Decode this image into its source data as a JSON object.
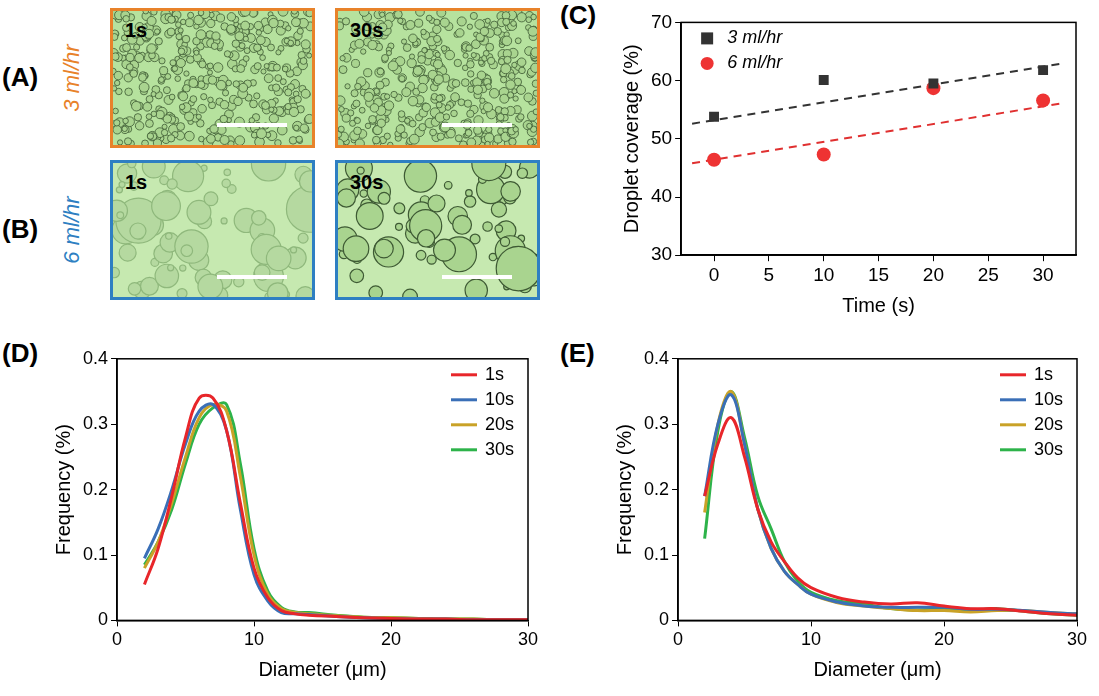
{
  "image_panels": [
    {
      "panel": "(A)",
      "label": "3 ml/hr",
      "color": "#e8822a",
      "frames": [
        "1s",
        "30s"
      ]
    },
    {
      "panel": "(B)",
      "label": "6 ml/hr",
      "color": "#2e7fc2",
      "frames": [
        "1s",
        "30s"
      ]
    }
  ],
  "chart_data": [
    {
      "panel": "(C)",
      "type": "scatter",
      "x_label": "Time (s)",
      "y_label": "Droplet coverage (%)",
      "xlim": [
        -3,
        33
      ],
      "xticks": [
        0,
        5,
        10,
        15,
        20,
        25,
        30
      ],
      "ylim": [
        30,
        70
      ],
      "yticks": [
        30,
        40,
        50,
        60,
        70
      ],
      "grid": false,
      "legend": "upper left",
      "series": [
        {
          "name": "3 ml/hr",
          "color": "#333333",
          "marker": "square",
          "x": [
            0,
            10,
            20,
            30
          ],
          "values": [
            53.8,
            60.1,
            59.5,
            61.8
          ]
        },
        {
          "name": "6 ml/hr",
          "color": "#ee3333",
          "marker": "circle",
          "x": [
            0,
            10,
            20,
            30
          ],
          "values": [
            46.4,
            47.3,
            58.7,
            56.6
          ]
        },
        {
          "type": "line",
          "line_style": "dashed",
          "color": "#333333",
          "x": [
            -2,
            32
          ],
          "values": [
            52.6,
            63.0
          ]
        },
        {
          "type": "line",
          "line_style": "dashed",
          "color": "#e03030",
          "x": [
            -2,
            32
          ],
          "values": [
            45.8,
            56.2
          ]
        }
      ]
    },
    {
      "panel": "(D)",
      "type": "line",
      "x_label": "Diameter (μm)",
      "y_label": "Frequency (%)",
      "xlim": [
        0,
        30
      ],
      "xticks": [
        0,
        10,
        20,
        30
      ],
      "ylim": [
        0,
        0.4
      ],
      "yticks": [
        0,
        0.1,
        0.2,
        0.3,
        0.4
      ],
      "grid": false,
      "legend": "upper right",
      "series": [
        {
          "name": "1s",
          "color": "#e8262a",
          "x": [
            2,
            3,
            4,
            5,
            6,
            7,
            8,
            9,
            10,
            11,
            12,
            13,
            14,
            16,
            18,
            20,
            22,
            24,
            26,
            28,
            30
          ],
          "values": [
            0.055,
            0.11,
            0.19,
            0.28,
            0.34,
            0.34,
            0.29,
            0.18,
            0.08,
            0.035,
            0.015,
            0.01,
            0.008,
            0.006,
            0.004,
            0.003,
            0.002,
            0.002,
            0.001,
            0.001,
            0.001
          ]
        },
        {
          "name": "10s",
          "color": "#3a6fb7",
          "x": [
            2,
            3,
            4,
            5,
            6,
            7,
            8,
            9,
            10,
            11,
            12,
            13,
            14,
            16,
            18,
            20,
            22,
            24,
            26,
            28,
            30
          ],
          "values": [
            0.095,
            0.14,
            0.2,
            0.27,
            0.32,
            0.33,
            0.29,
            0.17,
            0.07,
            0.03,
            0.012,
            0.01,
            0.009,
            0.006,
            0.004,
            0.003,
            0.002,
            0.002,
            0.001,
            0.001,
            0.001
          ]
        },
        {
          "name": "20s",
          "color": "#c9a227",
          "x": [
            2,
            3,
            4,
            5,
            6,
            7,
            8,
            9,
            10,
            11,
            12,
            13,
            14,
            16,
            18,
            20,
            22,
            24,
            26,
            28,
            30
          ],
          "values": [
            0.08,
            0.12,
            0.18,
            0.25,
            0.31,
            0.33,
            0.32,
            0.22,
            0.1,
            0.04,
            0.018,
            0.012,
            0.01,
            0.007,
            0.005,
            0.004,
            0.003,
            0.002,
            0.002,
            0.001,
            0.001
          ]
        },
        {
          "name": "30s",
          "color": "#2db34a",
          "x": [
            2,
            3,
            4,
            5,
            6,
            7,
            8,
            9,
            10,
            11,
            12,
            13,
            14,
            16,
            18,
            20,
            22,
            24,
            26,
            28,
            30
          ],
          "values": [
            0.085,
            0.12,
            0.17,
            0.24,
            0.3,
            0.325,
            0.33,
            0.24,
            0.11,
            0.045,
            0.02,
            0.013,
            0.012,
            0.008,
            0.005,
            0.004,
            0.003,
            0.002,
            0.002,
            0.001,
            0.001
          ]
        }
      ]
    },
    {
      "panel": "(E)",
      "type": "line",
      "x_label": "Diameter (μm)",
      "y_label": "Frequency (%)",
      "xlim": [
        0,
        30
      ],
      "xticks": [
        0,
        10,
        20,
        30
      ],
      "ylim": [
        0,
        0.4
      ],
      "yticks": [
        0,
        0.1,
        0.2,
        0.3,
        0.4
      ],
      "grid": false,
      "legend": "upper right",
      "series": [
        {
          "name": "1s",
          "color": "#e8262a",
          "x": [
            2,
            3,
            4,
            5,
            6,
            7,
            8,
            9,
            10,
            12,
            14,
            16,
            18,
            20,
            22,
            24,
            26,
            28,
            30
          ],
          "values": [
            0.19,
            0.27,
            0.31,
            0.25,
            0.17,
            0.12,
            0.09,
            0.065,
            0.05,
            0.035,
            0.028,
            0.025,
            0.027,
            0.022,
            0.018,
            0.018,
            0.014,
            0.01,
            0.008
          ]
        },
        {
          "name": "10s",
          "color": "#3a6fb7",
          "x": [
            2,
            3,
            4,
            5,
            6,
            7,
            8,
            9,
            10,
            12,
            14,
            16,
            18,
            20,
            22,
            24,
            26,
            28,
            30
          ],
          "values": [
            0.19,
            0.3,
            0.345,
            0.27,
            0.17,
            0.11,
            0.075,
            0.055,
            0.04,
            0.028,
            0.022,
            0.02,
            0.02,
            0.02,
            0.017,
            0.017,
            0.015,
            0.012,
            0.01
          ]
        },
        {
          "name": "20s",
          "color": "#c9a227",
          "x": [
            2,
            3,
            4,
            5,
            6,
            7,
            8,
            9,
            10,
            12,
            14,
            16,
            18,
            20,
            22,
            24,
            26,
            28,
            30
          ],
          "values": [
            0.165,
            0.3,
            0.35,
            0.27,
            0.17,
            0.11,
            0.075,
            0.055,
            0.04,
            0.027,
            0.022,
            0.018,
            0.015,
            0.015,
            0.013,
            0.015,
            0.015,
            0.012,
            0.01
          ]
        },
        {
          "name": "30s",
          "color": "#2db34a",
          "x": [
            2,
            3,
            4,
            5,
            6,
            7,
            8,
            9,
            10,
            12,
            14,
            16,
            18,
            20,
            22,
            24,
            26,
            28,
            30
          ],
          "values": [
            0.125,
            0.29,
            0.35,
            0.28,
            0.19,
            0.14,
            0.09,
            0.06,
            0.043,
            0.03,
            0.025,
            0.018,
            0.016,
            0.017,
            0.015,
            0.018,
            0.014,
            0.01,
            0.008
          ]
        }
      ]
    }
  ]
}
